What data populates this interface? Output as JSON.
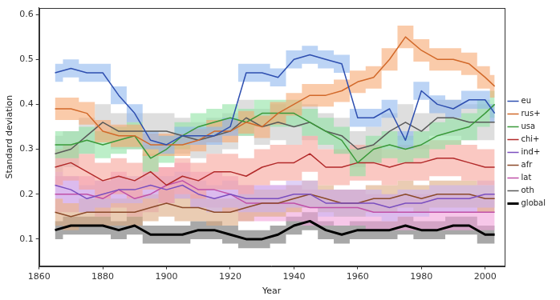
{
  "chart_data": {
    "type": "line",
    "x_label": "Year",
    "y_label": "Standard deviation",
    "x": [
      1865,
      1870,
      1875,
      1880,
      1885,
      1890,
      1895,
      1900,
      1905,
      1910,
      1915,
      1920,
      1925,
      1930,
      1935,
      1940,
      1945,
      1950,
      1955,
      1960,
      1965,
      1970,
      1975,
      1980,
      1985,
      1990,
      1995,
      2000,
      2003
    ],
    "xlim": [
      1860,
      2006
    ],
    "xticks": [
      1860,
      1880,
      1900,
      1920,
      1940,
      1960,
      1980,
      2000
    ],
    "ylim": [
      0.04,
      0.615
    ],
    "yticks": [
      0.1,
      0.2,
      0.3,
      0.4,
      0.5,
      0.6
    ],
    "grid": false,
    "legend": "right",
    "series": [
      {
        "name": "eu",
        "color": "#2e4fb0",
        "band_color": "#8fb8ee",
        "values": [
          0.47,
          0.48,
          0.47,
          0.47,
          0.42,
          0.38,
          0.32,
          0.31,
          0.33,
          0.33,
          0.33,
          0.35,
          0.47,
          0.47,
          0.46,
          0.5,
          0.51,
          0.5,
          0.49,
          0.37,
          0.37,
          0.39,
          0.32,
          0.43,
          0.4,
          0.39,
          0.41,
          0.41,
          0.38
        ],
        "errors": [
          0.02,
          0.02,
          0.02,
          0.02,
          0.02,
          0.02,
          0.02,
          0.02,
          0.02,
          0.02,
          0.02,
          0.02,
          0.02,
          0.02,
          0.02,
          0.02,
          0.02,
          0.02,
          0.02,
          0.02,
          0.02,
          0.02,
          0.02,
          0.02,
          0.02,
          0.02,
          0.02,
          0.02,
          0.02
        ]
      },
      {
        "name": "rus+",
        "color": "#d2692a",
        "band_color": "#f7a872",
        "values": [
          0.39,
          0.39,
          0.38,
          0.34,
          0.33,
          0.33,
          0.31,
          0.31,
          0.31,
          0.32,
          0.34,
          0.34,
          0.36,
          0.35,
          0.38,
          0.4,
          0.42,
          0.42,
          0.43,
          0.45,
          0.46,
          0.5,
          0.55,
          0.52,
          0.5,
          0.5,
          0.49,
          0.46,
          0.44
        ],
        "errors": [
          0.025,
          0.025,
          0.025,
          0.025,
          0.025,
          0.025,
          0.025,
          0.025,
          0.025,
          0.025,
          0.025,
          0.025,
          0.025,
          0.025,
          0.025,
          0.025,
          0.025,
          0.025,
          0.025,
          0.025,
          0.025,
          0.025,
          0.025,
          0.025,
          0.025,
          0.025,
          0.025,
          0.025,
          0.025
        ]
      },
      {
        "name": "usa",
        "color": "#3a9a3a",
        "band_color": "#8fe3a3",
        "values": [
          0.31,
          0.31,
          0.32,
          0.31,
          0.32,
          0.33,
          0.28,
          0.3,
          0.33,
          0.35,
          0.36,
          0.37,
          0.36,
          0.38,
          0.38,
          0.38,
          0.36,
          0.34,
          0.32,
          0.27,
          0.3,
          0.31,
          0.3,
          0.31,
          0.33,
          0.34,
          0.35,
          0.38,
          0.4
        ],
        "errors": [
          0.03,
          0.03,
          0.03,
          0.03,
          0.03,
          0.03,
          0.03,
          0.03,
          0.03,
          0.03,
          0.03,
          0.03,
          0.03,
          0.03,
          0.03,
          0.03,
          0.03,
          0.03,
          0.03,
          0.03,
          0.03,
          0.03,
          0.03,
          0.03,
          0.03,
          0.03,
          0.03,
          0.03,
          0.03
        ]
      },
      {
        "name": "chi+",
        "color": "#b22a2a",
        "band_color": "#f7a39a",
        "values": [
          0.26,
          0.27,
          0.25,
          0.23,
          0.24,
          0.23,
          0.25,
          0.22,
          0.24,
          0.23,
          0.25,
          0.25,
          0.24,
          0.26,
          0.27,
          0.27,
          0.29,
          0.26,
          0.26,
          0.27,
          0.27,
          0.26,
          0.27,
          0.27,
          0.28,
          0.28,
          0.27,
          0.26,
          0.26
        ],
        "errors": [
          0.04,
          0.04,
          0.04,
          0.04,
          0.04,
          0.04,
          0.04,
          0.04,
          0.04,
          0.04,
          0.04,
          0.04,
          0.04,
          0.04,
          0.04,
          0.04,
          0.04,
          0.04,
          0.04,
          0.04,
          0.04,
          0.04,
          0.04,
          0.04,
          0.04,
          0.04,
          0.04,
          0.04,
          0.04
        ]
      },
      {
        "name": "ind+",
        "color": "#7b4fbf",
        "band_color": "#c9b2f2",
        "values": [
          0.22,
          0.21,
          0.19,
          0.2,
          0.21,
          0.21,
          0.22,
          0.21,
          0.22,
          0.2,
          0.19,
          0.2,
          0.19,
          0.19,
          0.19,
          0.2,
          0.2,
          0.18,
          0.18,
          0.18,
          0.18,
          0.17,
          0.18,
          0.18,
          0.19,
          0.19,
          0.19,
          0.2,
          0.2
        ],
        "errors": [
          0.03,
          0.03,
          0.03,
          0.03,
          0.03,
          0.03,
          0.03,
          0.03,
          0.03,
          0.03,
          0.03,
          0.03,
          0.03,
          0.03,
          0.03,
          0.03,
          0.03,
          0.03,
          0.03,
          0.03,
          0.03,
          0.03,
          0.03,
          0.03,
          0.03,
          0.03,
          0.03,
          0.03,
          0.03
        ]
      },
      {
        "name": "afr",
        "color": "#8b4a2a",
        "band_color": "#dcaa80",
        "values": [
          0.16,
          0.15,
          0.16,
          0.16,
          0.16,
          0.16,
          0.17,
          0.18,
          0.17,
          0.17,
          0.16,
          0.16,
          0.17,
          0.18,
          0.18,
          0.19,
          0.2,
          0.19,
          0.18,
          0.18,
          0.19,
          0.19,
          0.2,
          0.19,
          0.2,
          0.2,
          0.2,
          0.19,
          0.19
        ],
        "errors": [
          0.03,
          0.03,
          0.03,
          0.03,
          0.03,
          0.03,
          0.03,
          0.03,
          0.03,
          0.03,
          0.03,
          0.03,
          0.03,
          0.03,
          0.03,
          0.03,
          0.03,
          0.03,
          0.03,
          0.03,
          0.03,
          0.03,
          0.03,
          0.03,
          0.03,
          0.03,
          0.03,
          0.03,
          0.03
        ]
      },
      {
        "name": "lat",
        "color": "#c050a8",
        "band_color": "#f2a2da",
        "values": [
          0.2,
          0.2,
          0.2,
          0.19,
          0.21,
          0.19,
          0.2,
          0.22,
          0.23,
          0.21,
          0.21,
          0.2,
          0.18,
          0.18,
          0.18,
          0.18,
          0.17,
          0.17,
          0.17,
          0.17,
          0.16,
          0.16,
          0.16,
          0.16,
          0.16,
          0.16,
          0.16,
          0.16,
          0.16
        ],
        "errors": [
          0.04,
          0.04,
          0.04,
          0.04,
          0.04,
          0.04,
          0.04,
          0.04,
          0.04,
          0.04,
          0.04,
          0.04,
          0.04,
          0.04,
          0.04,
          0.04,
          0.04,
          0.04,
          0.04,
          0.04,
          0.04,
          0.04,
          0.04,
          0.04,
          0.04,
          0.04,
          0.04,
          0.04,
          0.04
        ]
      },
      {
        "name": "oth",
        "color": "#5a5a5a",
        "band_color": "#c8c8c8",
        "values": [
          0.29,
          0.3,
          0.33,
          0.36,
          0.34,
          0.34,
          0.34,
          0.34,
          0.33,
          0.32,
          0.33,
          0.34,
          0.37,
          0.35,
          0.36,
          0.35,
          0.36,
          0.34,
          0.33,
          0.3,
          0.31,
          0.34,
          0.36,
          0.34,
          0.37,
          0.37,
          0.36,
          0.36,
          0.36
        ],
        "errors": [
          0.04,
          0.04,
          0.04,
          0.04,
          0.04,
          0.04,
          0.04,
          0.04,
          0.04,
          0.04,
          0.04,
          0.04,
          0.04,
          0.04,
          0.04,
          0.04,
          0.04,
          0.04,
          0.04,
          0.04,
          0.04,
          0.04,
          0.04,
          0.04,
          0.04,
          0.04,
          0.04,
          0.04,
          0.04
        ]
      },
      {
        "name": "global",
        "color": "#000000",
        "band_color": "#6e6e6e",
        "values": [
          0.12,
          0.13,
          0.13,
          0.13,
          0.12,
          0.13,
          0.11,
          0.11,
          0.11,
          0.12,
          0.12,
          0.11,
          0.1,
          0.1,
          0.11,
          0.13,
          0.14,
          0.12,
          0.11,
          0.12,
          0.12,
          0.12,
          0.13,
          0.12,
          0.12,
          0.13,
          0.13,
          0.11,
          0.11
        ],
        "errors": [
          0.02,
          0.02,
          0.02,
          0.02,
          0.02,
          0.02,
          0.02,
          0.02,
          0.02,
          0.02,
          0.02,
          0.02,
          0.02,
          0.02,
          0.02,
          0.02,
          0.02,
          0.02,
          0.02,
          0.02,
          0.02,
          0.02,
          0.02,
          0.02,
          0.02,
          0.02,
          0.02,
          0.02,
          0.02
        ]
      }
    ]
  }
}
